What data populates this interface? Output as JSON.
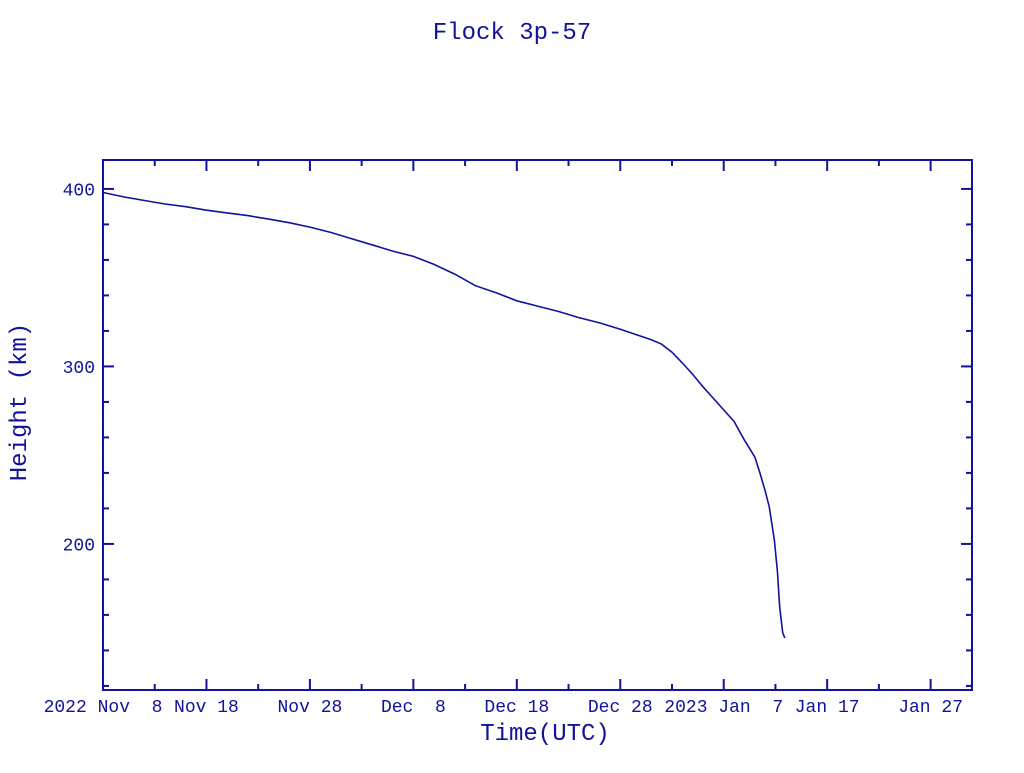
{
  "page": {
    "background": "#ffffff",
    "ink_color": "#12129B"
  },
  "chart_data": {
    "type": "line",
    "title": "Flock 3p-57",
    "xlabel": "Time(UTC)",
    "ylabel": "Height (km)",
    "grid": false,
    "legend": false,
    "x_unit": "days since 2022 Nov 8",
    "xlim": [
      0,
      84
    ],
    "ylim": [
      117.7,
      416.3
    ],
    "x_major_ticks": [
      {
        "day": 0,
        "label": "2022 Nov  8"
      },
      {
        "day": 10,
        "label": "Nov 18"
      },
      {
        "day": 20,
        "label": "Nov 28"
      },
      {
        "day": 30,
        "label": "Dec  8"
      },
      {
        "day": 40,
        "label": "Dec 18"
      },
      {
        "day": 50,
        "label": "Dec 28"
      },
      {
        "day": 60,
        "label": "2023 Jan  7"
      },
      {
        "day": 70,
        "label": "Jan 17"
      },
      {
        "day": 80,
        "label": "Jan 27"
      }
    ],
    "x_minor_tick_days": [
      5,
      15,
      25,
      35,
      45,
      55,
      65,
      75
    ],
    "y_major_ticks": [
      {
        "value": 200,
        "label": "200"
      },
      {
        "value": 300,
        "label": "300"
      },
      {
        "value": 400,
        "label": "400"
      }
    ],
    "y_minor_tick_values": [
      120,
      140,
      160,
      180,
      220,
      240,
      260,
      280,
      320,
      340,
      360,
      380
    ],
    "series": [
      {
        "name": "Flock 3p-57 height",
        "color": "#12129B",
        "points_day_km": [
          [
            0,
            398
          ],
          [
            2,
            395.5
          ],
          [
            4,
            393.5
          ],
          [
            6,
            391.5
          ],
          [
            8,
            390
          ],
          [
            10,
            388
          ],
          [
            12,
            386.5
          ],
          [
            14,
            385
          ],
          [
            16,
            383
          ],
          [
            18,
            381
          ],
          [
            20,
            378.5
          ],
          [
            22,
            375.5
          ],
          [
            24,
            372
          ],
          [
            26,
            368.5
          ],
          [
            28,
            365
          ],
          [
            30,
            362
          ],
          [
            32,
            357.5
          ],
          [
            34,
            352
          ],
          [
            36,
            345.5
          ],
          [
            38,
            341.5
          ],
          [
            40,
            337
          ],
          [
            42,
            334
          ],
          [
            44,
            331
          ],
          [
            46,
            327.5
          ],
          [
            48,
            324.5
          ],
          [
            50,
            321
          ],
          [
            52,
            317
          ],
          [
            53,
            315
          ],
          [
            54,
            312.5
          ],
          [
            55,
            308
          ],
          [
            56,
            302
          ],
          [
            57,
            295.5
          ],
          [
            58,
            288.5
          ],
          [
            59,
            282
          ],
          [
            60,
            275.5
          ],
          [
            61,
            269
          ],
          [
            62,
            258.5
          ],
          [
            63,
            249
          ],
          [
            63.5,
            240
          ],
          [
            64,
            230
          ],
          [
            64.4,
            221
          ],
          [
            64.9,
            202
          ],
          [
            65.2,
            184
          ],
          [
            65.4,
            165
          ],
          [
            65.7,
            150
          ],
          [
            65.9,
            147
          ]
        ]
      }
    ]
  }
}
